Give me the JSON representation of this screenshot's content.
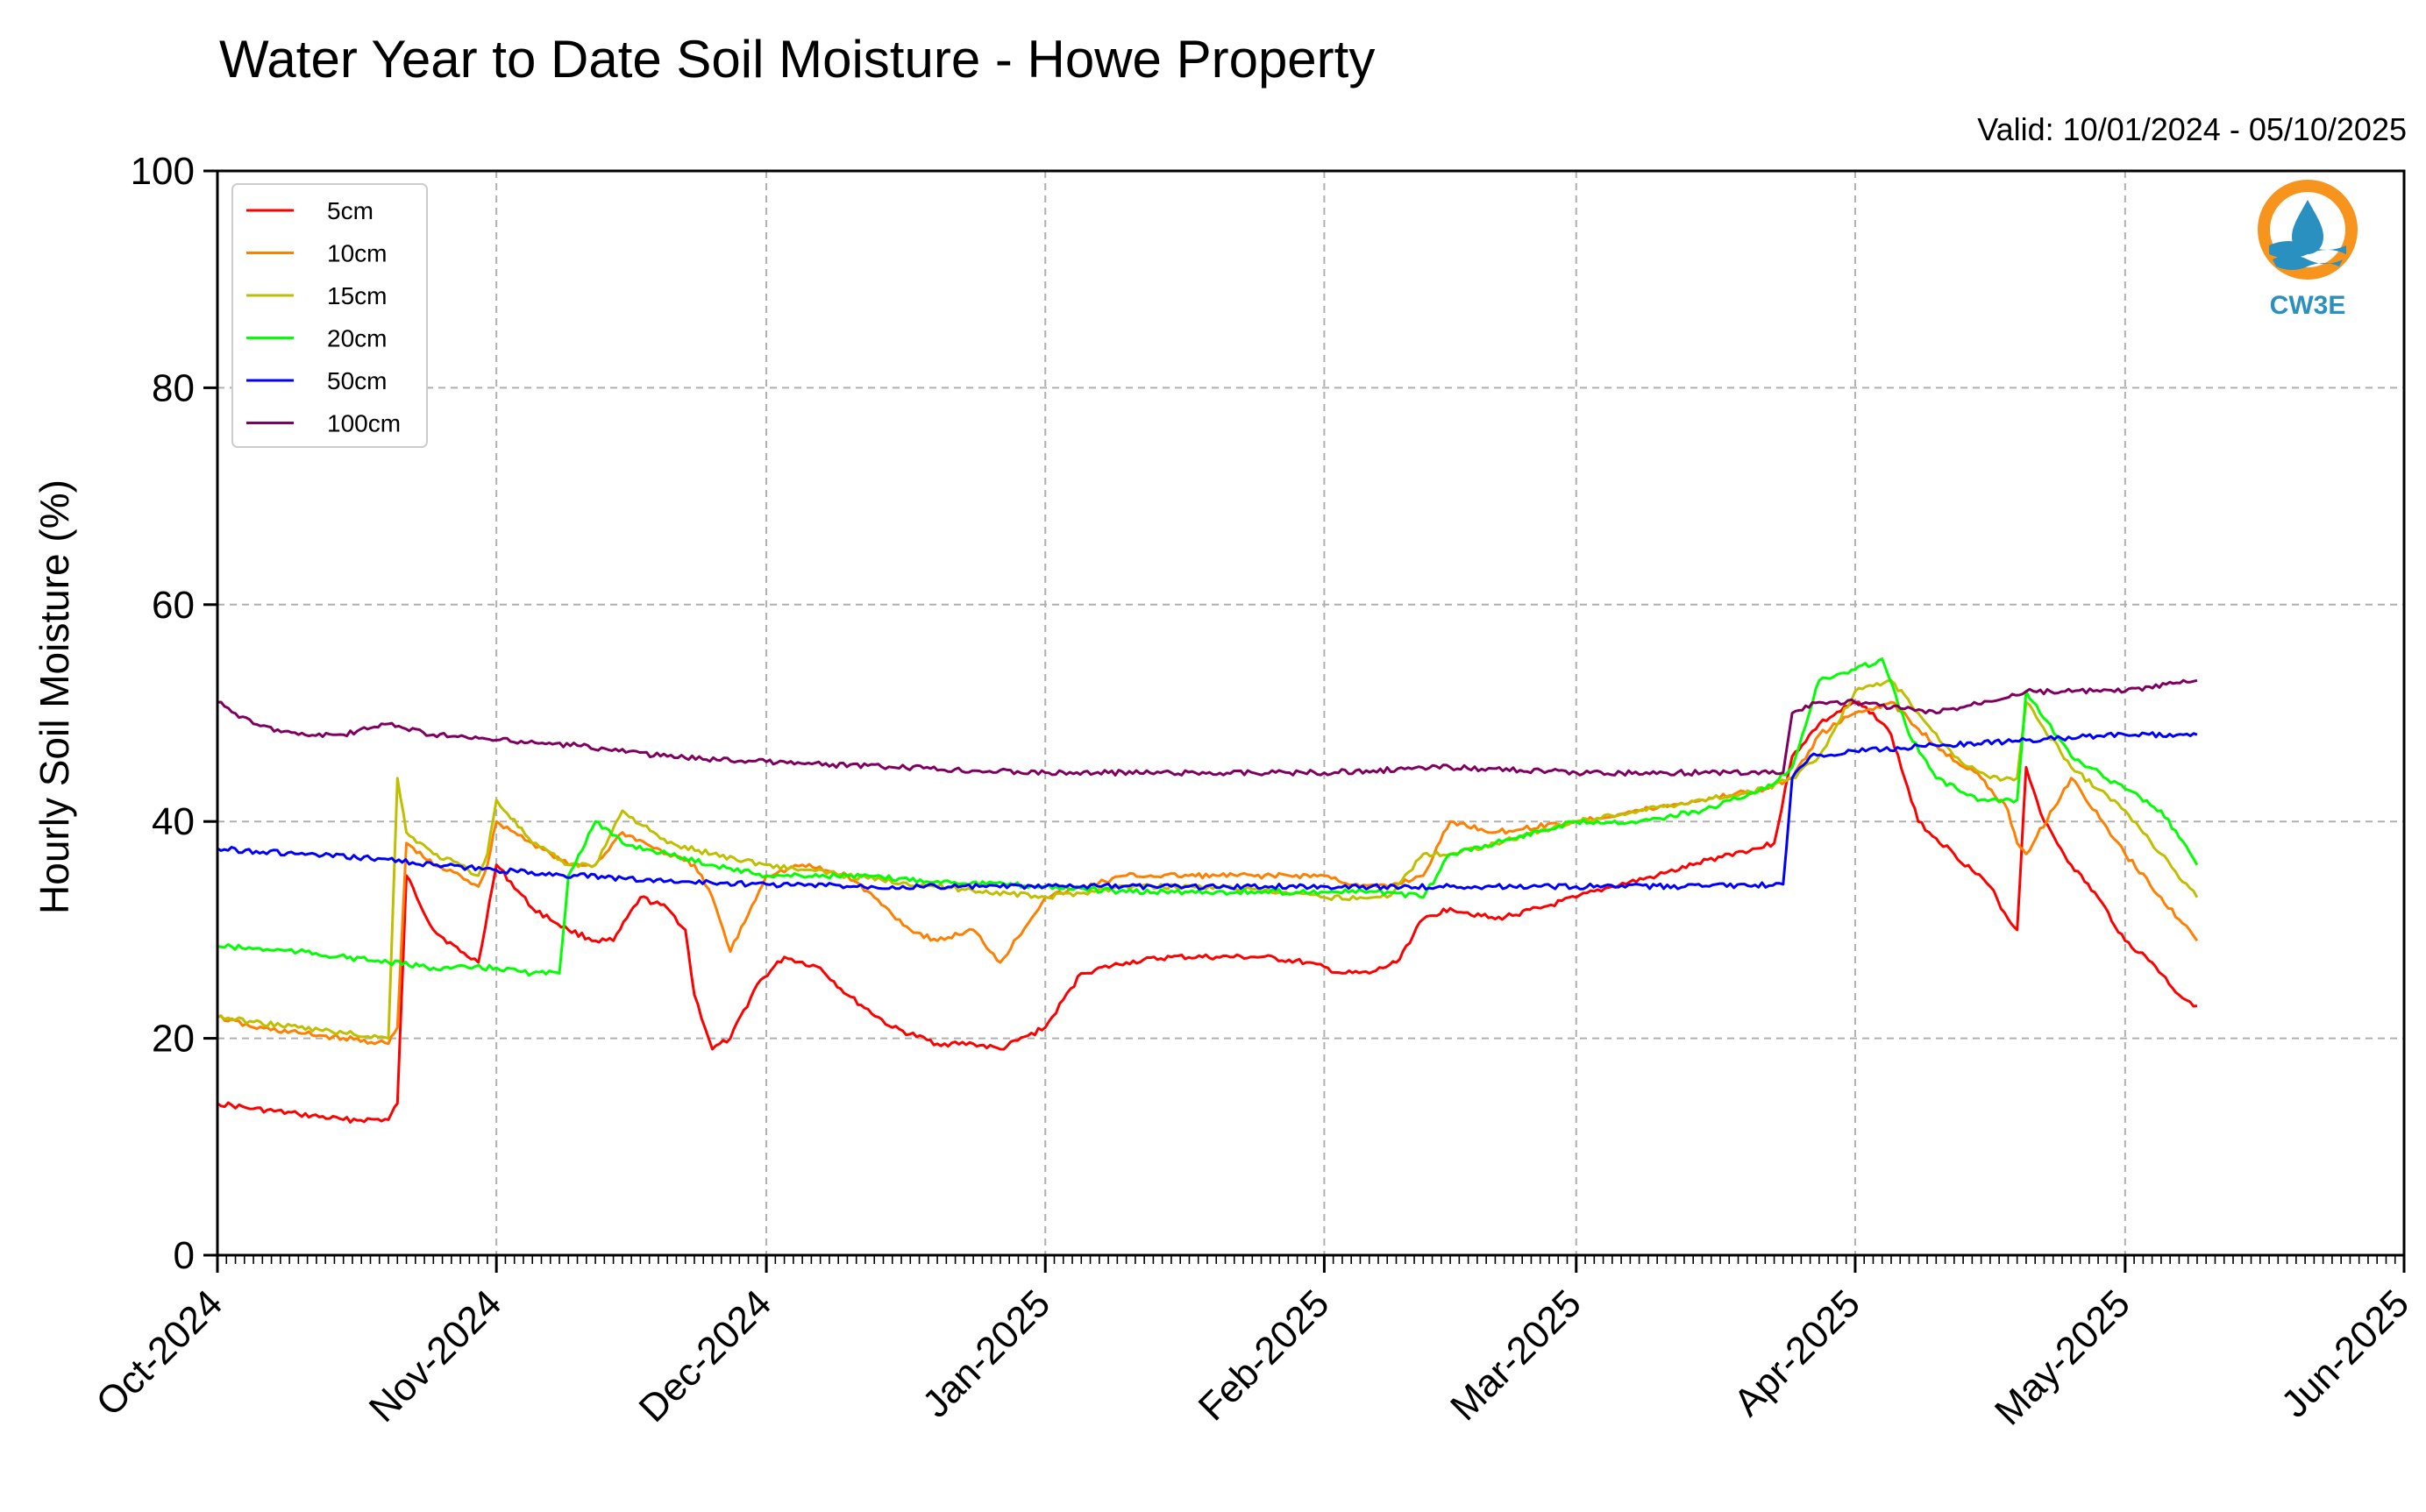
{
  "chart_data": {
    "type": "line",
    "title": "Water Year to Date Soil Moisture - Howe Property",
    "subtitle": "Valid: 10/01/2024 - 05/10/2025",
    "ylabel": "Hourly Soil Moisture (%)",
    "xlabel": "",
    "ylim": [
      0,
      100
    ],
    "yticks": [
      "0",
      "20",
      "40",
      "60",
      "80",
      "100"
    ],
    "xlim": [
      "2024-10-01",
      "2025-06-01"
    ],
    "xticks": [
      "Oct-2024",
      "Nov-2024",
      "Dec-2024",
      "Jan-2025",
      "Feb-2025",
      "Mar-2025",
      "Apr-2025",
      "May-2025",
      "Jun-2025"
    ],
    "grid": true,
    "legend_position": "top-left",
    "series": [
      {
        "name": "5cm",
        "color": "#ff0000",
        "x": [
          "2024-10-01",
          "2024-10-05",
          "2024-10-10",
          "2024-10-15",
          "2024-10-20",
          "2024-10-21",
          "2024-10-22",
          "2024-10-25",
          "2024-10-28",
          "2024-10-30",
          "2024-11-01",
          "2024-11-05",
          "2024-11-09",
          "2024-11-12",
          "2024-11-14",
          "2024-11-17",
          "2024-11-20",
          "2024-11-22",
          "2024-11-23",
          "2024-11-25",
          "2024-11-27",
          "2024-11-30",
          "2024-12-03",
          "2024-12-07",
          "2024-12-10",
          "2024-12-15",
          "2024-12-20",
          "2024-12-24",
          "2024-12-27",
          "2025-01-01",
          "2025-01-05",
          "2025-01-10",
          "2025-01-15",
          "2025-01-20",
          "2025-01-25",
          "2025-01-30",
          "2025-02-03",
          "2025-02-06",
          "2025-02-09",
          "2025-02-12",
          "2025-02-15",
          "2025-02-20",
          "2025-02-25",
          "2025-03-01",
          "2025-03-05",
          "2025-03-10",
          "2025-03-14",
          "2025-03-18",
          "2025-03-21",
          "2025-03-23",
          "2025-03-25",
          "2025-03-28",
          "2025-04-01",
          "2025-04-03",
          "2025-04-05",
          "2025-04-08",
          "2025-04-12",
          "2025-04-16",
          "2025-04-18",
          "2025-04-19",
          "2025-04-20",
          "2025-04-22",
          "2025-04-25",
          "2025-04-28",
          "2025-05-01",
          "2025-05-04",
          "2025-05-07",
          "2025-05-09"
        ],
        "values": [
          14,
          13.5,
          13,
          12.5,
          12.5,
          14,
          35,
          30,
          28,
          27,
          36,
          32,
          30,
          29,
          29,
          33,
          32,
          30,
          24,
          19,
          20,
          25,
          27.5,
          26.5,
          24,
          21,
          19.5,
          19.5,
          19,
          21,
          26,
          27,
          27.5,
          27.5,
          27.5,
          27,
          26,
          26,
          27,
          31,
          32,
          31,
          32,
          33,
          34,
          35,
          36,
          37,
          37.5,
          38,
          46,
          49,
          51,
          50,
          48,
          40,
          37,
          34,
          31,
          30,
          45,
          40,
          36,
          33,
          29,
          27,
          24,
          23
        ]
      },
      {
        "name": "10cm",
        "color": "#ff8000",
        "x": [
          "2024-10-01",
          "2024-10-05",
          "2024-10-10",
          "2024-10-15",
          "2024-10-20",
          "2024-10-21",
          "2024-10-22",
          "2024-10-25",
          "2024-10-28",
          "2024-10-30",
          "2024-10-31",
          "2024-11-01",
          "2024-11-05",
          "2024-11-09",
          "2024-11-12",
          "2024-11-15",
          "2024-11-20",
          "2024-11-23",
          "2024-11-25",
          "2024-11-27",
          "2024-12-01",
          "2024-12-05",
          "2024-12-10",
          "2024-12-13",
          "2024-12-17",
          "2024-12-20",
          "2024-12-24",
          "2024-12-27",
          "2025-01-01",
          "2025-01-10",
          "2025-01-20",
          "2025-02-01",
          "2025-02-05",
          "2025-02-08",
          "2025-02-12",
          "2025-02-15",
          "2025-02-20",
          "2025-03-01",
          "2025-03-08",
          "2025-03-15",
          "2025-03-22",
          "2025-03-25",
          "2025-03-28",
          "2025-04-01",
          "2025-04-05",
          "2025-04-10",
          "2025-04-15",
          "2025-04-18",
          "2025-04-19",
          "2025-04-20",
          "2025-04-25",
          "2025-05-01",
          "2025-05-05",
          "2025-05-09"
        ],
        "values": [
          22,
          21,
          20.5,
          20,
          19.5,
          21,
          38,
          36,
          35,
          34,
          36,
          40,
          38,
          36,
          36,
          39,
          37,
          36,
          33,
          28,
          35,
          36,
          35,
          33,
          30,
          29,
          30,
          27,
          33,
          35,
          35,
          35,
          34,
          34,
          35,
          40,
          39,
          40,
          41,
          42,
          43,
          44,
          48,
          50,
          51,
          47,
          44,
          41,
          38,
          37,
          44,
          37,
          33,
          29
        ]
      },
      {
        "name": "15cm",
        "color": "#bfbf00",
        "x": [
          "2024-10-01",
          "2024-10-05",
          "2024-10-10",
          "2024-10-15",
          "2024-10-20",
          "2024-10-21",
          "2024-10-22",
          "2024-10-25",
          "2024-10-28",
          "2024-10-30",
          "2024-10-31",
          "2024-11-01",
          "2024-11-05",
          "2024-11-09",
          "2024-11-12",
          "2024-11-15",
          "2024-11-20",
          "2024-11-25",
          "2024-12-01",
          "2024-12-10",
          "2024-12-20",
          "2025-01-01",
          "2025-01-10",
          "2025-01-20",
          "2025-02-01",
          "2025-02-05",
          "2025-02-08",
          "2025-02-12",
          "2025-02-15",
          "2025-02-20",
          "2025-03-01",
          "2025-03-08",
          "2025-03-15",
          "2025-03-22",
          "2025-03-25",
          "2025-03-28",
          "2025-04-01",
          "2025-04-05",
          "2025-04-08",
          "2025-04-12",
          "2025-04-16",
          "2025-04-19",
          "2025-04-20",
          "2025-04-25",
          "2025-05-01",
          "2025-05-05",
          "2025-05-09"
        ],
        "values": [
          22,
          21.5,
          21,
          20.5,
          20,
          44,
          39,
          37,
          36,
          35,
          37,
          42,
          38,
          36,
          36,
          41,
          38,
          37,
          36,
          35,
          34,
          33,
          34,
          34,
          33,
          33,
          33,
          37,
          37,
          38,
          40,
          41,
          42,
          43,
          44,
          46,
          52,
          53,
          50,
          46,
          44,
          44,
          51,
          45,
          41,
          37,
          33
        ]
      },
      {
        "name": "20cm",
        "color": "#00ff00",
        "x": [
          "2024-10-01",
          "2024-10-10",
          "2024-10-20",
          "2024-10-25",
          "2024-11-01",
          "2024-11-05",
          "2024-11-08",
          "2024-11-09",
          "2024-11-12",
          "2024-11-15",
          "2024-11-20",
          "2024-11-25",
          "2024-12-01",
          "2024-12-10",
          "2024-12-20",
          "2025-01-01",
          "2025-01-10",
          "2025-01-20",
          "2025-02-01",
          "2025-02-08",
          "2025-02-12",
          "2025-02-15",
          "2025-02-20",
          "2025-03-01",
          "2025-03-08",
          "2025-03-15",
          "2025-03-22",
          "2025-03-25",
          "2025-03-28",
          "2025-04-01",
          "2025-04-04",
          "2025-04-07",
          "2025-04-10",
          "2025-04-15",
          "2025-04-19",
          "2025-04-20",
          "2025-04-25",
          "2025-05-01",
          "2025-05-05",
          "2025-05-09"
        ],
        "values": [
          28.5,
          28,
          27,
          26.5,
          26.5,
          26,
          26,
          35,
          40,
          38,
          37,
          36,
          35,
          35,
          34.5,
          34,
          33.5,
          33.5,
          33.5,
          33.5,
          33,
          37,
          38,
          40,
          40,
          41,
          43,
          45,
          53,
          54,
          55,
          48,
          44,
          42,
          42,
          52,
          46,
          43,
          41,
          36
        ]
      },
      {
        "name": "50cm",
        "color": "#0000ff",
        "x": [
          "2024-10-01",
          "2024-10-10",
          "2024-10-20",
          "2024-10-25",
          "2024-11-01",
          "2024-11-10",
          "2024-11-20",
          "2024-12-01",
          "2024-12-15",
          "2025-01-01",
          "2025-01-15",
          "2025-02-01",
          "2025-02-15",
          "2025-03-01",
          "2025-03-15",
          "2025-03-24",
          "2025-03-25",
          "2025-03-27",
          "2025-04-01",
          "2025-04-10",
          "2025-04-20",
          "2025-05-01",
          "2025-05-09"
        ],
        "values": [
          37.5,
          37,
          36.5,
          36,
          35.5,
          35,
          34.5,
          34.2,
          34,
          34,
          34,
          34,
          34,
          34,
          34,
          34.2,
          44,
          46,
          46.5,
          47,
          47.5,
          48,
          48
        ]
      },
      {
        "name": "100cm",
        "color": "#800060",
        "x": [
          "2024-10-01",
          "2024-10-05",
          "2024-10-10",
          "2024-10-15",
          "2024-10-20",
          "2024-10-25",
          "2024-11-01",
          "2024-11-10",
          "2024-11-20",
          "2024-12-01",
          "2024-12-15",
          "2025-01-01",
          "2025-01-15",
          "2025-02-01",
          "2025-02-15",
          "2025-03-01",
          "2025-03-15",
          "2025-03-24",
          "2025-03-25",
          "2025-03-28",
          "2025-04-01",
          "2025-04-10",
          "2025-04-20",
          "2025-05-01",
          "2025-05-09"
        ],
        "values": [
          51,
          49,
          48,
          48,
          49,
          48,
          47.5,
          47,
          46,
          45.5,
          45,
          44.5,
          44.5,
          44.5,
          45,
          44.5,
          44.5,
          44.5,
          50,
          51,
          51,
          50,
          52,
          52,
          53
        ]
      }
    ]
  },
  "logo": {
    "text": "CW3E",
    "ring_color": "#f7941d",
    "wave_color": "#2a90bf"
  }
}
